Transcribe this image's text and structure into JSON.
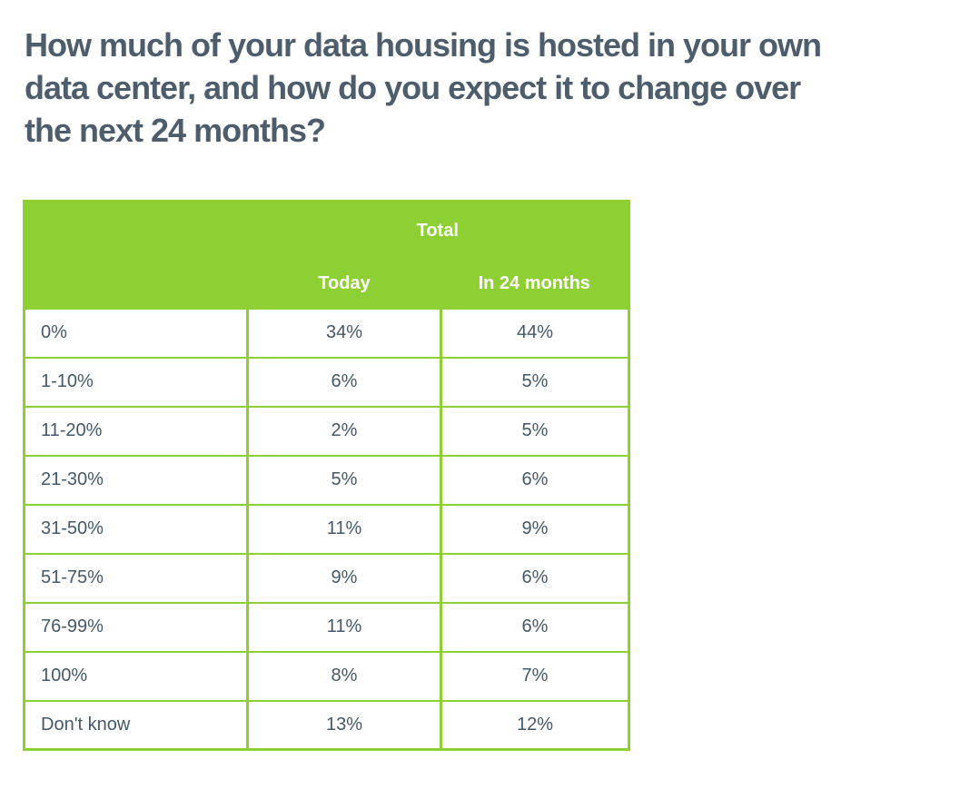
{
  "title_lines": [
    "How much of your data housing is hosted in your own",
    "data center, and how do you expect it to change over",
    "the next 24 months?"
  ],
  "colors": {
    "header_green": "#8ed033",
    "border_green": "#8ed033",
    "title_text": "#4e5d6b",
    "body_text": "#44586a",
    "header_text": "#ffffff"
  },
  "table": {
    "group_header": "Total",
    "columns": [
      "Today",
      "In 24 months"
    ],
    "rows": [
      [
        "0%",
        "34%",
        "44%"
      ],
      [
        "1-10%",
        "6%",
        "5%"
      ],
      [
        "11-20%",
        "2%",
        "5%"
      ],
      [
        "21-30%",
        "5%",
        "6%"
      ],
      [
        "31-50%",
        "11%",
        "9%"
      ],
      [
        "51-75%",
        "9%",
        "6%"
      ],
      [
        "76-99%",
        "11%",
        "6%"
      ],
      [
        "100%",
        "8%",
        "7%"
      ],
      [
        "Don't know",
        "13%",
        "12%"
      ]
    ]
  },
  "chart_data": {
    "type": "table",
    "title": "How much of your data housing is hosted in your own data center, and how do you expect it to change over the next 24 months?",
    "group_header": "Total",
    "columns": [
      "Today",
      "In 24 months"
    ],
    "categories": [
      "0%",
      "1-10%",
      "11-20%",
      "21-30%",
      "31-50%",
      "51-75%",
      "76-99%",
      "100%",
      "Don't know"
    ],
    "series": [
      {
        "name": "Today",
        "values": [
          34,
          6,
          2,
          5,
          11,
          9,
          11,
          8,
          13
        ]
      },
      {
        "name": "In 24 months",
        "values": [
          44,
          5,
          5,
          6,
          9,
          6,
          6,
          7,
          12
        ]
      }
    ],
    "unit": "%",
    "layout": {
      "header_background": "#8ed033",
      "header_text_color": "#ffffff",
      "grid": "green-borders"
    }
  }
}
